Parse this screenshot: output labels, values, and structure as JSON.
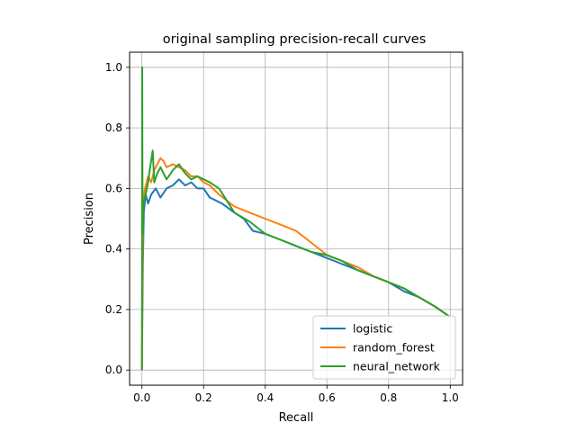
{
  "chart_data": {
    "type": "line",
    "title": "original sampling precision-recall curves",
    "xlabel": "Recall",
    "ylabel": "Precision",
    "xlim": [
      -0.04,
      1.04
    ],
    "ylim": [
      -0.05,
      1.05
    ],
    "xticks": [
      0.0,
      0.2,
      0.4,
      0.6,
      0.8,
      1.0
    ],
    "xtick_labels": [
      "0.0",
      "0.2",
      "0.4",
      "0.6",
      "0.8",
      "1.0"
    ],
    "yticks": [
      0.0,
      0.2,
      0.4,
      0.6,
      0.8,
      1.0
    ],
    "ytick_labels": [
      "0.0",
      "0.2",
      "0.4",
      "0.6",
      "0.8",
      "1.0"
    ],
    "grid": true,
    "legend_position": "lower-right",
    "series": [
      {
        "name": "logistic",
        "color": "#1f77b4",
        "points": [
          [
            0.0,
            0.0
          ],
          [
            0.003,
            0.34
          ],
          [
            0.006,
            0.52
          ],
          [
            0.012,
            0.58
          ],
          [
            0.02,
            0.55
          ],
          [
            0.03,
            0.58
          ],
          [
            0.045,
            0.6
          ],
          [
            0.06,
            0.57
          ],
          [
            0.08,
            0.6
          ],
          [
            0.1,
            0.61
          ],
          [
            0.12,
            0.63
          ],
          [
            0.14,
            0.61
          ],
          [
            0.16,
            0.62
          ],
          [
            0.18,
            0.6
          ],
          [
            0.2,
            0.6
          ],
          [
            0.22,
            0.57
          ],
          [
            0.26,
            0.55
          ],
          [
            0.3,
            0.52
          ],
          [
            0.33,
            0.5
          ],
          [
            0.36,
            0.46
          ],
          [
            0.4,
            0.45
          ],
          [
            0.45,
            0.43
          ],
          [
            0.5,
            0.41
          ],
          [
            0.55,
            0.39
          ],
          [
            0.6,
            0.37
          ],
          [
            0.65,
            0.35
          ],
          [
            0.7,
            0.33
          ],
          [
            0.75,
            0.31
          ],
          [
            0.8,
            0.29
          ],
          [
            0.85,
            0.26
          ],
          [
            0.9,
            0.24
          ],
          [
            0.95,
            0.21
          ],
          [
            1.0,
            0.175
          ]
        ]
      },
      {
        "name": "random_forest",
        "color": "#ff7f0e",
        "points": [
          [
            0.0,
            0.0
          ],
          [
            0.002,
            0.4
          ],
          [
            0.005,
            0.56
          ],
          [
            0.01,
            0.6
          ],
          [
            0.02,
            0.64
          ],
          [
            0.03,
            0.62
          ],
          [
            0.04,
            0.66
          ],
          [
            0.05,
            0.68
          ],
          [
            0.06,
            0.7
          ],
          [
            0.07,
            0.69
          ],
          [
            0.08,
            0.67
          ],
          [
            0.1,
            0.68
          ],
          [
            0.12,
            0.67
          ],
          [
            0.14,
            0.66
          ],
          [
            0.16,
            0.64
          ],
          [
            0.18,
            0.64
          ],
          [
            0.2,
            0.62
          ],
          [
            0.22,
            0.61
          ],
          [
            0.25,
            0.58
          ],
          [
            0.3,
            0.54
          ],
          [
            0.35,
            0.52
          ],
          [
            0.4,
            0.5
          ],
          [
            0.45,
            0.48
          ],
          [
            0.5,
            0.46
          ],
          [
            0.55,
            0.42
          ],
          [
            0.6,
            0.38
          ],
          [
            0.65,
            0.36
          ],
          [
            0.7,
            0.34
          ],
          [
            0.75,
            0.31
          ],
          [
            0.8,
            0.29
          ],
          [
            0.85,
            0.27
          ],
          [
            0.9,
            0.24
          ],
          [
            0.95,
            0.21
          ],
          [
            1.0,
            0.175
          ]
        ]
      },
      {
        "name": "neural_network",
        "color": "#2ca02c",
        "points": [
          [
            0.0,
            0.0
          ],
          [
            0.001,
            1.0
          ],
          [
            0.002,
            0.5
          ],
          [
            0.003,
            0.45
          ],
          [
            0.005,
            0.55
          ],
          [
            0.01,
            0.57
          ],
          [
            0.02,
            0.62
          ],
          [
            0.025,
            0.66
          ],
          [
            0.035,
            0.725
          ],
          [
            0.04,
            0.62
          ],
          [
            0.05,
            0.65
          ],
          [
            0.06,
            0.67
          ],
          [
            0.08,
            0.63
          ],
          [
            0.1,
            0.66
          ],
          [
            0.12,
            0.68
          ],
          [
            0.14,
            0.65
          ],
          [
            0.16,
            0.63
          ],
          [
            0.18,
            0.64
          ],
          [
            0.2,
            0.63
          ],
          [
            0.22,
            0.62
          ],
          [
            0.25,
            0.6
          ],
          [
            0.3,
            0.52
          ],
          [
            0.35,
            0.49
          ],
          [
            0.4,
            0.45
          ],
          [
            0.45,
            0.43
          ],
          [
            0.5,
            0.41
          ],
          [
            0.55,
            0.39
          ],
          [
            0.6,
            0.38
          ],
          [
            0.65,
            0.36
          ],
          [
            0.7,
            0.33
          ],
          [
            0.75,
            0.31
          ],
          [
            0.8,
            0.29
          ],
          [
            0.85,
            0.27
          ],
          [
            0.9,
            0.24
          ],
          [
            0.95,
            0.21
          ],
          [
            1.0,
            0.175
          ]
        ]
      }
    ]
  }
}
